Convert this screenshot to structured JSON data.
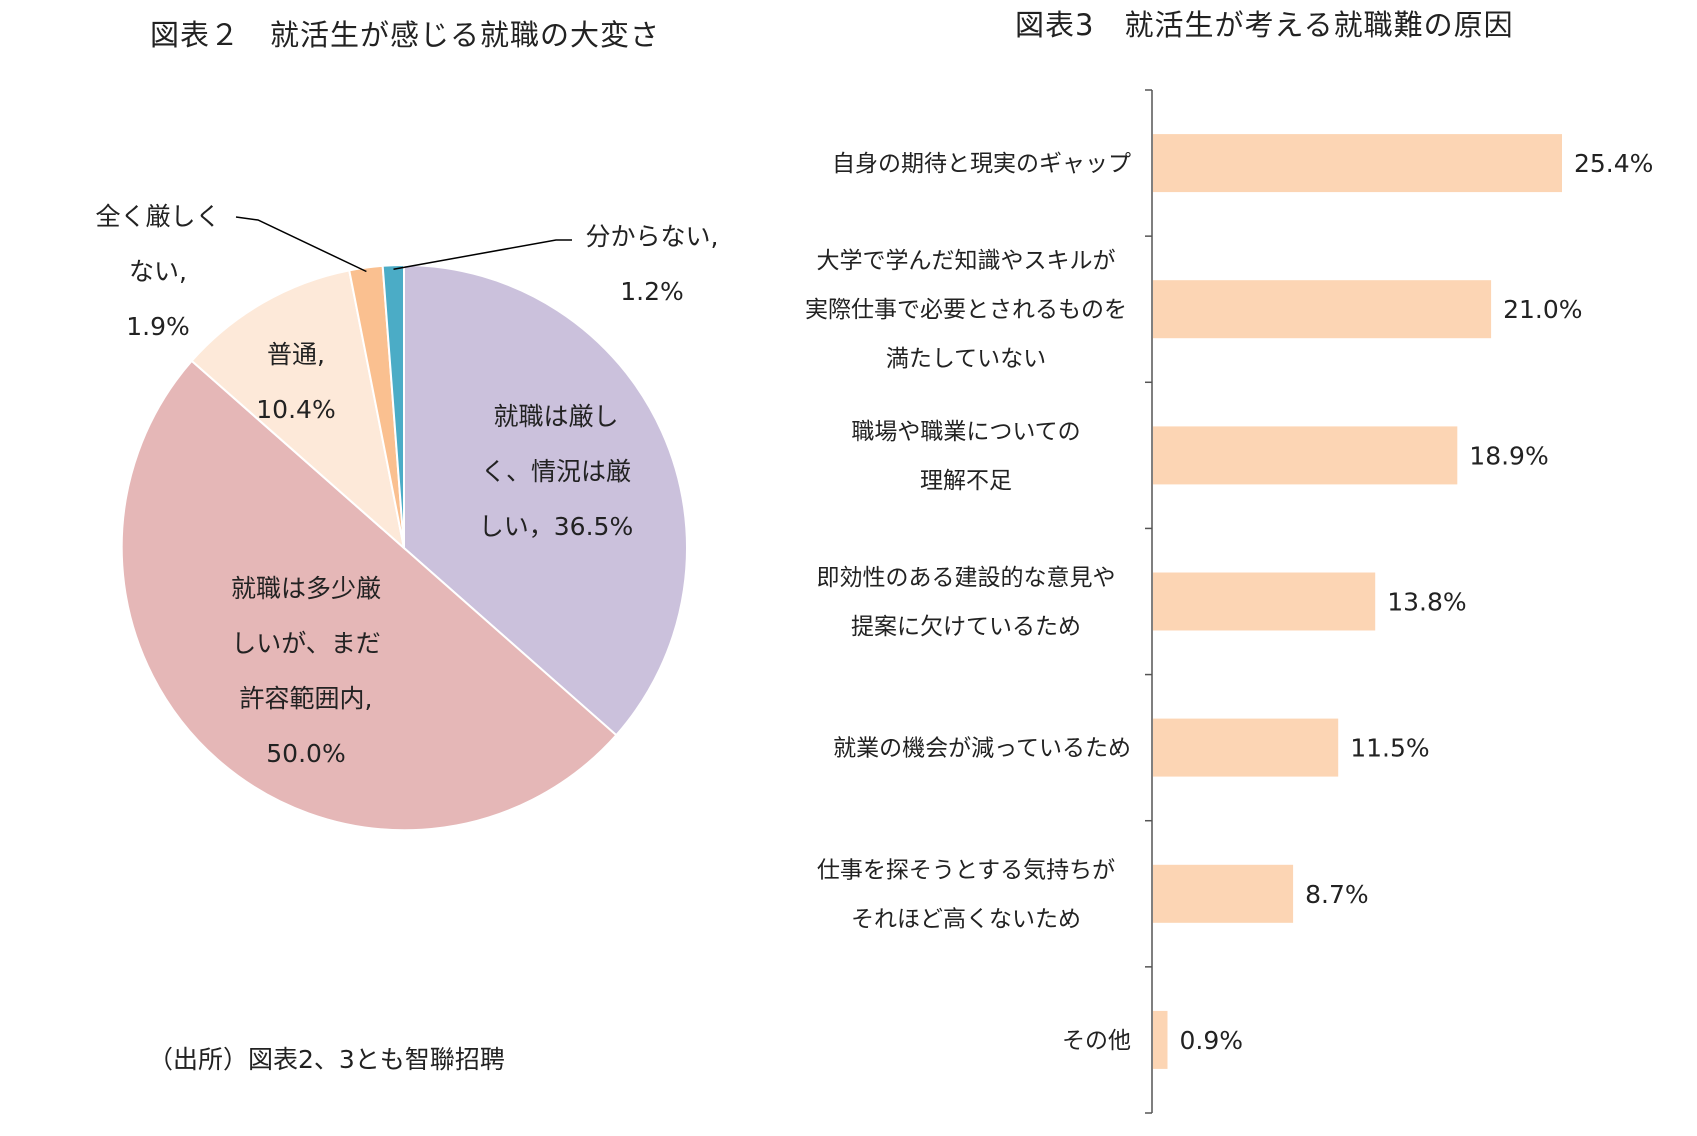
{
  "titles": {
    "pie": "図表２　就活生が感じる就職の大変さ",
    "bar": "図表3　就活生が考える就職難の原因"
  },
  "source": "（出所）図表2、3とも智聯招聘",
  "chart_data": [
    {
      "type": "pie",
      "title": "図表２　就活生が感じる就職の大変さ",
      "slices": [
        {
          "label": "就職は厳しく、情況は厳しい",
          "value": 36.5,
          "color": "#cbc1dc",
          "label_lines": [
            "就職は厳し",
            "く、情況は厳",
            "しい，36.5%"
          ]
        },
        {
          "label": "就職は多少厳しいが、まだ許容範囲内",
          "value": 50.0,
          "color": "#e5b7b7",
          "label_lines": [
            "就職は多少厳",
            "しいが、まだ",
            "許容範囲内,",
            "50.0%"
          ]
        },
        {
          "label": "普通",
          "value": 10.4,
          "color": "#fde9d9",
          "label_lines": [
            "普通,",
            "10.4%"
          ]
        },
        {
          "label": "全く厳しくない",
          "value": 1.9,
          "color": "#fac090",
          "label_lines": [
            "全く厳しく",
            "ない,",
            "1.9%"
          ]
        },
        {
          "label": "分からない",
          "value": 1.2,
          "color": "#4bacc6",
          "label_lines": [
            "分からない,",
            "1.2%"
          ]
        }
      ]
    },
    {
      "type": "bar",
      "orientation": "horizontal",
      "title": "図表3　就活生が考える就職難の原因",
      "bar_color": "#fcd5b4",
      "xlim": [
        0,
        25.4
      ],
      "categories": [
        {
          "label": "自身の期待と現実のギャップ",
          "lines": [
            "自身の期待と現実のギャップ"
          ],
          "value": 25.4,
          "value_label": "25.4%"
        },
        {
          "label": "大学で学んだ知識やスキルが実際仕事で必要とされるものを満たしていない",
          "lines": [
            "大学で学んだ知識やスキルが",
            "実際仕事で必要とされるものを",
            "満たしていない"
          ],
          "value": 21.0,
          "value_label": "21.0%"
        },
        {
          "label": "職場や職業についての理解不足",
          "lines": [
            "職場や職業についての",
            "理解不足"
          ],
          "value": 18.9,
          "value_label": "18.9%"
        },
        {
          "label": "即効性のある建設的な意見や提案に欠けているため",
          "lines": [
            "即効性のある建設的な意見や",
            "提案に欠けているため"
          ],
          "value": 13.8,
          "value_label": "13.8%"
        },
        {
          "label": "就業の機会が減っているため",
          "lines": [
            "就業の機会が減っているため"
          ],
          "value": 11.5,
          "value_label": "11.5%"
        },
        {
          "label": "仕事を探そうとする気持ちがそれほど高くないため",
          "lines": [
            "仕事を探そうとする気持ちが",
            "それほど高くないため"
          ],
          "value": 8.7,
          "value_label": "8.7%"
        },
        {
          "label": "その他",
          "lines": [
            "その他"
          ],
          "value": 0.9,
          "value_label": "0.9%"
        }
      ]
    }
  ]
}
